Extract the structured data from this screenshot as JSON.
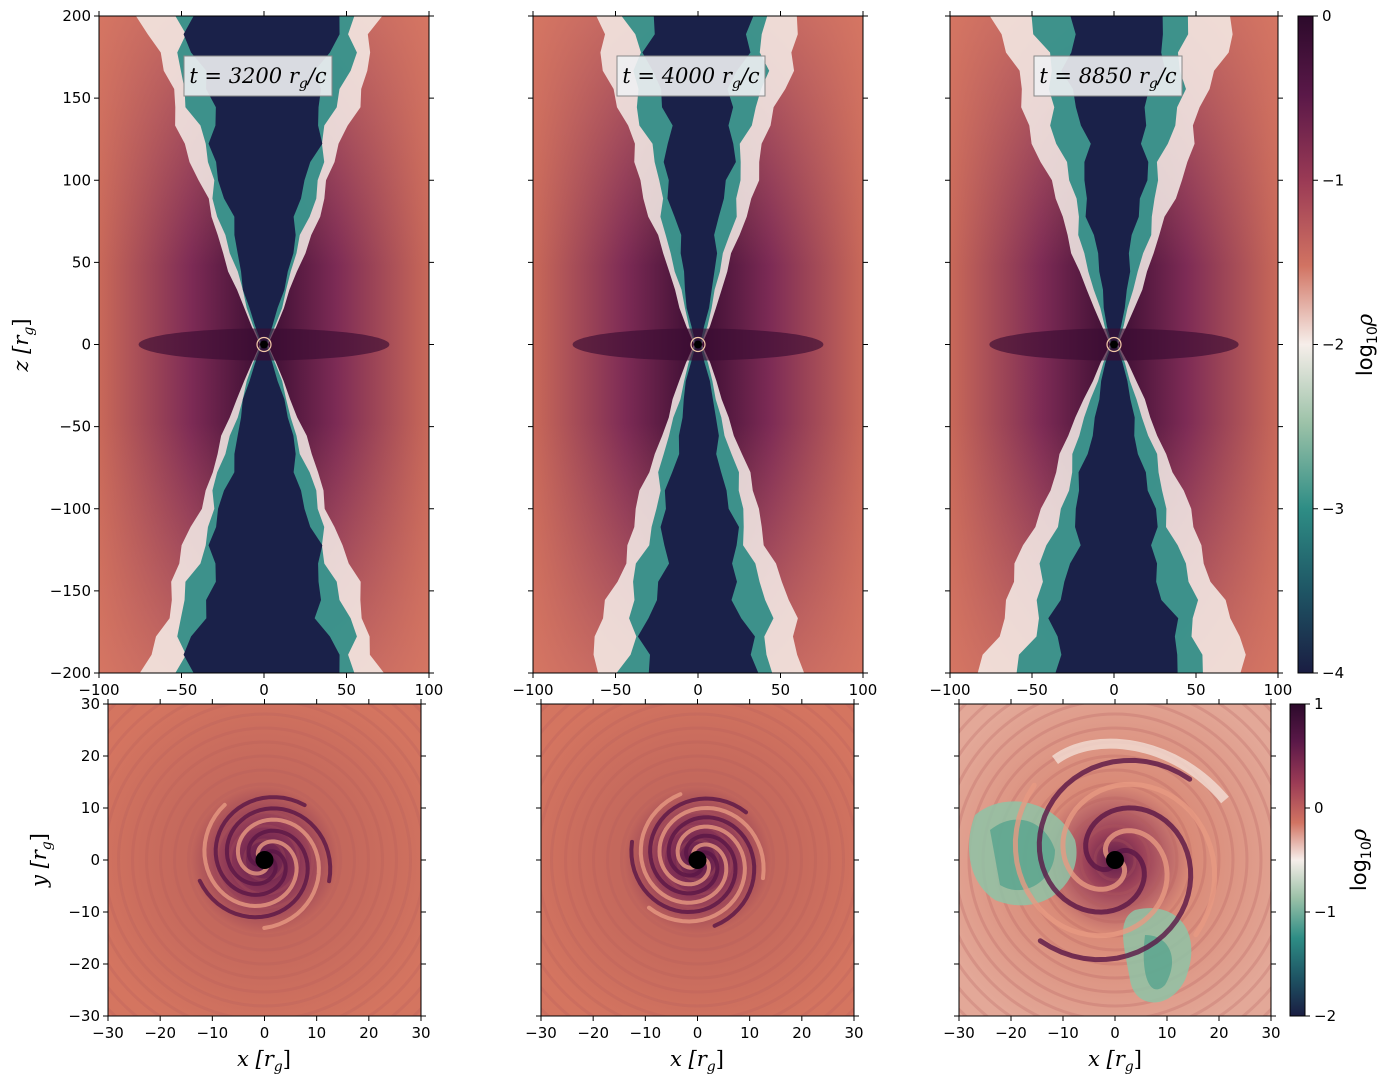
{
  "colors": {
    "jet": "#1a2149",
    "mid_low": "#2a8a83",
    "white": "#f6eeea",
    "salmon": "#d26d5e",
    "maroon": "#6f1d4f",
    "deep": "#3a0d32"
  },
  "chart_data": [
    {
      "type": "heatmap",
      "panel": "side-1",
      "time_label": "t = 3200 r_g/c",
      "xlim": [
        -100,
        100
      ],
      "ylim": [
        -200,
        200
      ],
      "xticks": [
        "−100",
        "−50",
        "0",
        "50",
        "100"
      ],
      "yticks": [
        "200",
        "150",
        "100",
        "50",
        "0",
        "−50",
        "−100",
        "−150",
        "−200"
      ],
      "ylabel": "z [r_g]",
      "colorbar": null
    },
    {
      "type": "heatmap",
      "panel": "side-2",
      "time_label": "t = 4000 r_g/c",
      "xlim": [
        -100,
        100
      ],
      "ylim": [
        -200,
        200
      ],
      "xticks": [
        "−100",
        "−50",
        "0",
        "50",
        "100"
      ]
    },
    {
      "type": "heatmap",
      "panel": "side-3",
      "time_label": "t = 8850 r_g/c",
      "xlim": [
        -100,
        100
      ],
      "ylim": [
        -200,
        200
      ],
      "xticks": [
        "−100",
        "−50",
        "0",
        "50",
        "100"
      ],
      "colorbar": {
        "label": "log₁₀ρ",
        "range": [
          -4,
          0
        ],
        "ticks": [
          "0",
          "−1",
          "−2",
          "−3",
          "−4"
        ]
      }
    },
    {
      "type": "heatmap",
      "panel": "top-1",
      "xlim": [
        -30,
        30
      ],
      "ylim": [
        -30,
        30
      ],
      "xticks": [
        "−30",
        "−20",
        "−10",
        "0",
        "10",
        "20",
        "30"
      ],
      "yticks": [
        "30",
        "20",
        "10",
        "0",
        "−10",
        "−20",
        "−30"
      ],
      "xlabel": "x [r_g]",
      "ylabel": "y [r_g]"
    },
    {
      "type": "heatmap",
      "panel": "top-2",
      "xlim": [
        -30,
        30
      ],
      "ylim": [
        -30,
        30
      ],
      "xticks": [
        "−30",
        "−20",
        "−10",
        "0",
        "10",
        "20",
        "30"
      ],
      "xlabel": "x [r_g]"
    },
    {
      "type": "heatmap",
      "panel": "top-3",
      "xlim": [
        -30,
        30
      ],
      "ylim": [
        -30,
        30
      ],
      "xticks": [
        "−30",
        "−20",
        "−10",
        "0",
        "10",
        "20",
        "30"
      ],
      "xlabel": "x [r_g]",
      "colorbar": {
        "label": "log₁₀ρ",
        "range": [
          -2,
          1
        ],
        "ticks": [
          "1",
          "0",
          "−1",
          "−2"
        ]
      }
    }
  ],
  "labels": {
    "t1": "t = 3200 r",
    "t2": "t = 4000 r",
    "t3": "t = 8850 r",
    "t_sub": "g",
    "t_tail": "/c",
    "z_label": "z [r",
    "y_label": "y [r",
    "x_label": "x [r",
    "sub_g": "g",
    "close": "]",
    "cb_log": "log",
    "cb_sub": "10",
    "cb_rho": "ρ"
  }
}
